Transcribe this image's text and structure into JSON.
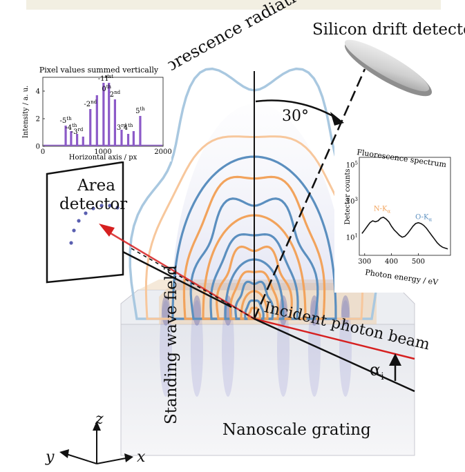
{
  "labels": {
    "fluorescence_radiation": "Fluorescence radiation",
    "silicon_drift_detector": "Silicon drift detector",
    "angle": "30°",
    "area_detector_line1": "Area",
    "area_detector_line2": "detector",
    "standing_wave_field": "Standing wave field",
    "incident_photon_beam": "Incident photon beam",
    "alpha_symbol": "α",
    "alpha_sub": "i",
    "nanoscale_grating": "Nanoscale grating",
    "axis_z": "z",
    "axis_y": "y",
    "axis_x": "x"
  },
  "colors": {
    "blue_contour": "#5b8fbf",
    "light_blue_contour": "#a9c8e0",
    "orange_contour": "#f2a35c",
    "light_orange_contour": "#f7c79c",
    "beam_red": "#d62020",
    "purple": "#8c5ac8",
    "dot_blue": "#5a5fb0"
  },
  "chart_data": [
    {
      "type": "bar",
      "title": "Pixel values summed vertically",
      "xlabel": "Horizontal axis / px",
      "ylabel": "Intensity / a. u.",
      "xlim": [
        0,
        2000
      ],
      "ylim": [
        0,
        5
      ],
      "x_ticks": [
        "0",
        "1000",
        "2000"
      ],
      "y_ticks": [
        "0",
        "2",
        "4"
      ],
      "x": [
        380,
        470,
        570,
        670,
        790,
        900,
        1010,
        1100,
        1200,
        1310,
        1420,
        1510,
        1620
      ],
      "values": [
        1.5,
        1.1,
        0.9,
        0.7,
        2.7,
        3.7,
        4.6,
        4.6,
        3.4,
        1.2,
        0.9,
        1.1,
        2.2
      ],
      "peak_labels": [
        {
          "text": "-5",
          "sup": "th",
          "x": 380,
          "y": 1.7
        },
        {
          "text": "-4",
          "sup": "th",
          "x": 470,
          "y": 1.2
        },
        {
          "text": "-3",
          "sup": "rd",
          "x": 570,
          "y": 0.9
        },
        {
          "text": "-2",
          "sup": "nd",
          "x": 790,
          "y": 2.9
        },
        {
          "text": "-1",
          "sup": "st",
          "x": 1010,
          "y": 4.75
        },
        {
          "text": "1",
          "sup": "st",
          "x": 1100,
          "y": 4.75
        },
        {
          "text": "0",
          "sup": "th",
          "x": 1060,
          "y": 4.0
        },
        {
          "text": "2",
          "sup": "nd",
          "x": 1200,
          "y": 3.6
        },
        {
          "text": "3",
          "sup": "rd",
          "x": 1310,
          "y": 1.2
        },
        {
          "text": "4",
          "sup": "th",
          "x": 1420,
          "y": 1.2
        },
        {
          "text": "5",
          "sup": "th",
          "x": 1620,
          "y": 2.4
        }
      ],
      "color": "#8c5ac8"
    },
    {
      "type": "line",
      "title": "Fluorescence spectrum",
      "xlabel": "Photon energy / eV",
      "ylabel": "Detector counts",
      "xlim": [
        280,
        620
      ],
      "x_ticks": [
        "300",
        "400",
        "500"
      ],
      "y_ticks": [
        {
          "base": "10",
          "exp": "1"
        },
        {
          "base": "10",
          "exp": "3"
        },
        {
          "base": "10",
          "exp": "5"
        }
      ],
      "scale": "log",
      "x": [
        290,
        300,
        310,
        320,
        330,
        340,
        350,
        360,
        370,
        380,
        390,
        400,
        410,
        420,
        430,
        440,
        450,
        460,
        470,
        480,
        490,
        500,
        510,
        520,
        530,
        540,
        550,
        560,
        570,
        580,
        590,
        600,
        610
      ],
      "y": [
        1.2,
        1.4,
        1.6,
        1.8,
        1.9,
        1.85,
        1.9,
        2.05,
        2.1,
        2.0,
        1.85,
        1.6,
        1.4,
        1.25,
        1.1,
        1.0,
        1.05,
        1.2,
        1.4,
        1.6,
        1.75,
        1.8,
        1.75,
        1.65,
        1.5,
        1.3,
        1.1,
        0.9,
        0.7,
        0.55,
        0.45,
        0.4,
        0.35
      ],
      "annotations": [
        {
          "text": "N-K",
          "sub": "α",
          "color": "#f2a35c",
          "x": 365,
          "y": 2.45
        },
        {
          "text": "O-K",
          "sub": "α",
          "color": "#5b8fbf",
          "x": 520,
          "y": 2.0
        }
      ],
      "color": "#111111"
    }
  ]
}
